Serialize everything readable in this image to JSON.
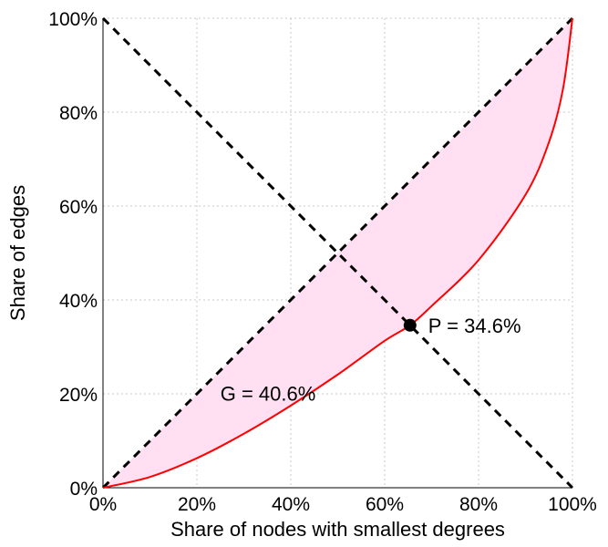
{
  "chart_data": {
    "type": "line",
    "title": "",
    "xlabel": "Share of nodes with smallest degrees",
    "ylabel": "Share of edges",
    "xlim": [
      0,
      100
    ],
    "ylim": [
      0,
      100
    ],
    "grid": true,
    "x_ticks": [
      "0%",
      "20%",
      "40%",
      "60%",
      "80%",
      "100%"
    ],
    "y_ticks": [
      "0%",
      "20%",
      "40%",
      "60%",
      "80%",
      "100%"
    ],
    "series": [
      {
        "role": "lorenz-curve",
        "color": "#ff0000",
        "fill": "#ffdff1",
        "x": [
          0,
          10,
          20,
          30,
          40,
          50,
          60,
          65.4,
          70,
          80,
          90,
          95,
          98,
          100
        ],
        "y": [
          0,
          2.3,
          6.3,
          11.5,
          17.5,
          24.1,
          31.3,
          34.6,
          38.7,
          48.5,
          62.4,
          73.6,
          85,
          100
        ]
      },
      {
        "role": "equality-line",
        "color": "#000000",
        "x": [
          0,
          100
        ],
        "y": [
          0,
          100
        ]
      },
      {
        "role": "anti-diagonal",
        "color": "#000000",
        "x": [
          0,
          100
        ],
        "y": [
          100,
          0
        ]
      }
    ],
    "point": {
      "x": 65.4,
      "y": 34.6,
      "color": "#000000"
    },
    "annotations": {
      "p_label": "P = 34.6%",
      "g_label": "G = 40.6%"
    }
  }
}
